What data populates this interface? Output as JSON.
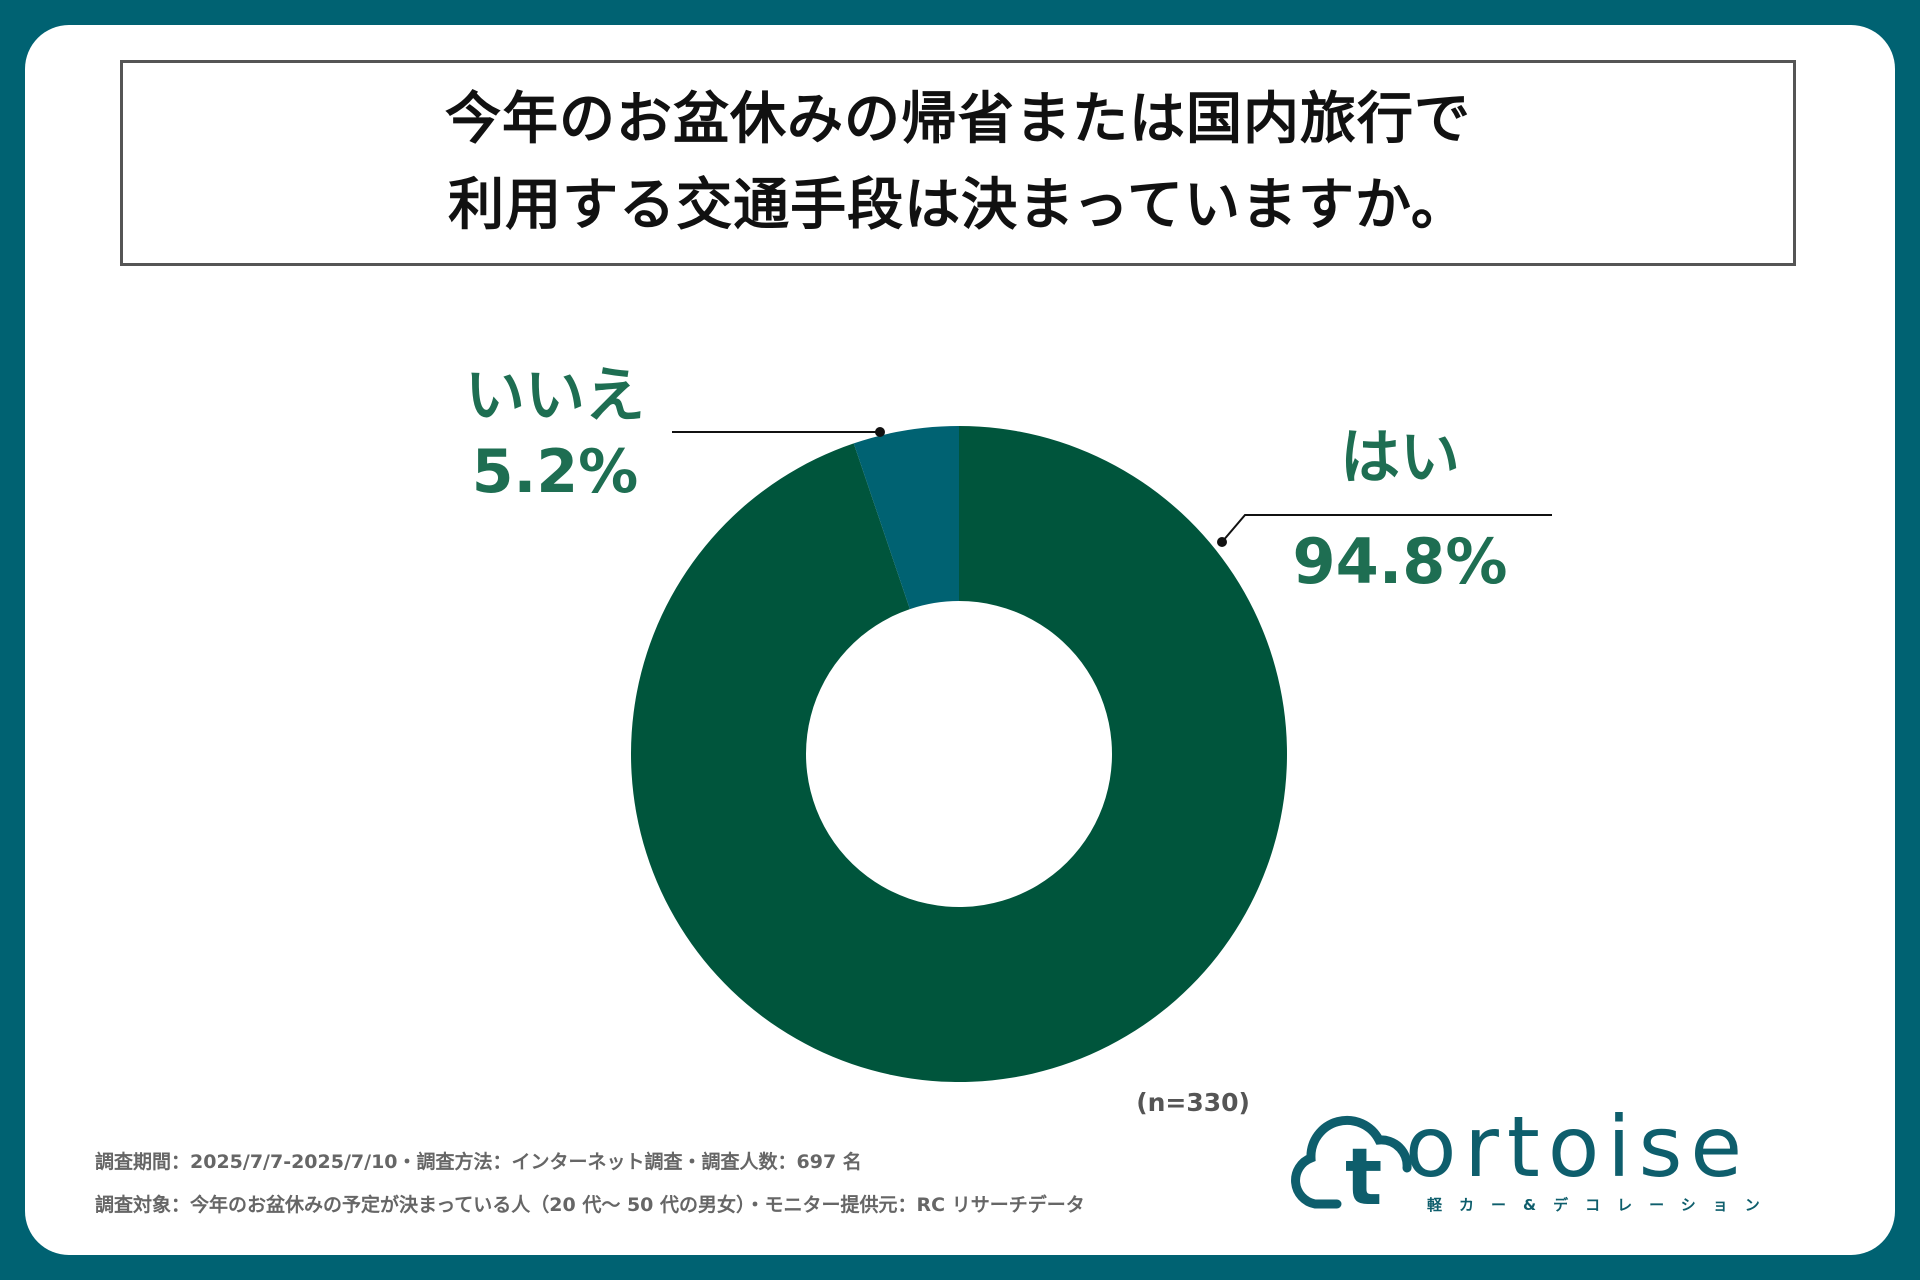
{
  "title": {
    "line1": "今年のお盆休みの帰省または国内旅行で",
    "line2": "利用する交通手段は決まっていますか。"
  },
  "chart_data": {
    "type": "pie",
    "variant": "donut",
    "slices": [
      {
        "label": "はい",
        "value": 94.8,
        "value_label": "94.8%",
        "color": "#00553c"
      },
      {
        "label": "いいえ",
        "value": 5.2,
        "value_label": "5.2%",
        "color": "#006272"
      }
    ],
    "sample_size": "(n=330)"
  },
  "footnotes": {
    "line1": "調査期間：2025/7/7-2025/7/10・調査方法：インターネット調査・調査人数：697 名",
    "line2": "調査対象：今年のお盆休みの予定が決まっている人（20 代～ 50 代の男女）・モニター提供元：RC リサーチデータ"
  },
  "logo": {
    "wordmark": "ortoise",
    "letter": "t",
    "tagline": "軽カー&デコレーション"
  },
  "colors": {
    "background": "#006272",
    "label_text": "#1e6e52",
    "logo": "#0e5e6c"
  }
}
